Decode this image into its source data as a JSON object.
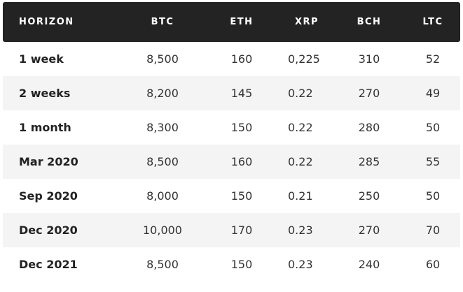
{
  "table": {
    "headers": {
      "horizon": "HORIZON",
      "btc": "BTC",
      "eth": "ETH",
      "xrp": "XRP",
      "bch": "BCH",
      "ltc": "LTC"
    },
    "rows": [
      {
        "horizon": "1 week",
        "btc": "8,500",
        "eth": "160",
        "xrp": "0,225",
        "bch": "310",
        "ltc": "52"
      },
      {
        "horizon": "2 weeks",
        "btc": "8,200",
        "eth": "145",
        "xrp": "0.22",
        "bch": "270",
        "ltc": "49"
      },
      {
        "horizon": "1 month",
        "btc": "8,300",
        "eth": "150",
        "xrp": "0.22",
        "bch": "280",
        "ltc": "50"
      },
      {
        "horizon": "Mar 2020",
        "btc": "8,500",
        "eth": "160",
        "xrp": "0.22",
        "bch": "285",
        "ltc": "55"
      },
      {
        "horizon": "Sep 2020",
        "btc": "8,000",
        "eth": "150",
        "xrp": "0.21",
        "bch": "250",
        "ltc": "50"
      },
      {
        "horizon": "Dec 2020",
        "btc": "10,000",
        "eth": "170",
        "xrp": "0.23",
        "bch": "270",
        "ltc": "70"
      },
      {
        "horizon": "Dec 2021",
        "btc": "8,500",
        "eth": "150",
        "xrp": "0.23",
        "bch": "240",
        "ltc": "60"
      }
    ]
  }
}
